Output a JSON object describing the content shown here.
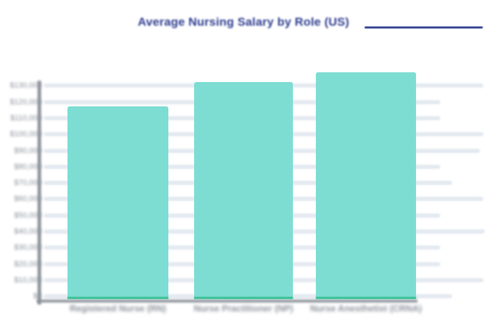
{
  "title": {
    "text": "Average Nursing Salary by Role (US)"
  },
  "chart_data": {
    "type": "bar",
    "title": "Average Nursing Salary by Role (US)",
    "categories": [
      "Registered Nurse (RN)",
      "Nurse Practitioner (NP)",
      "Nurse Anesthetist (CRNA)"
    ],
    "values": [
      119000,
      134000,
      140000
    ],
    "xlabel": "",
    "ylabel": "",
    "ylim": [
      0,
      130000
    ],
    "ytick_step": 10000,
    "ytick_labels_bottom_to_top": [
      "$0",
      "$10,000",
      "$20,000",
      "$30,000",
      "$40,000",
      "$50,000",
      "$60,000",
      "$70,000",
      "$80,000",
      "$90,000",
      "$100,000",
      "$110,000",
      "$120,000",
      "$130,000"
    ],
    "grid": true,
    "legend_position": "none",
    "colors": {
      "title": "#2e3d8f",
      "title_rule": "#2e3d8f",
      "bar_fill": "#7eddd3",
      "bar_bottom_edge": "#35bd90",
      "gridline": "#e3e9f0",
      "axis_line": "#8a9099",
      "tick_label": "#8a9099",
      "background": "#ffffff"
    }
  }
}
